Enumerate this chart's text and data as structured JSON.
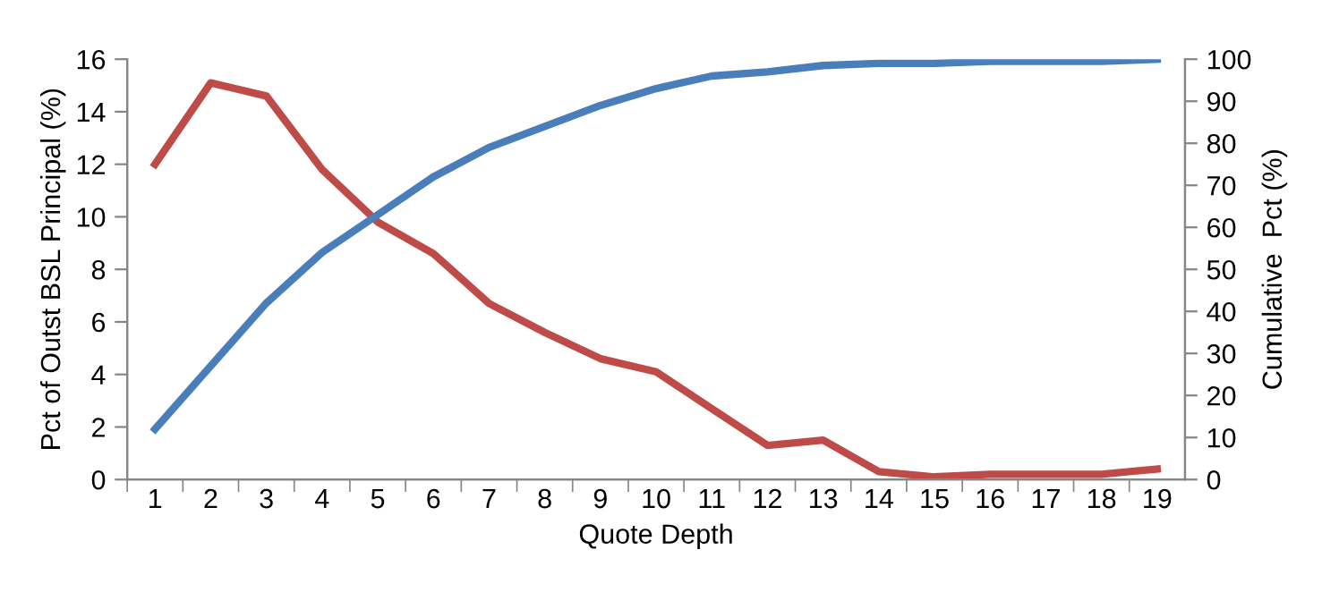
{
  "chart_data": {
    "type": "line",
    "xlabel": "Quote Depth",
    "ylabel": "Pct of Outst BSL Principal (%)",
    "y2label": "Cumulative  Pct (%)",
    "categories": [
      "1",
      "2",
      "3",
      "4",
      "5",
      "6",
      "7",
      "8",
      "9",
      "10",
      "11",
      "12",
      "13",
      "14",
      "15",
      "16",
      "17",
      "18",
      "19"
    ],
    "ylim": [
      0,
      16
    ],
    "yticks": [
      0,
      2,
      4,
      6,
      8,
      10,
      12,
      14,
      16
    ],
    "y2lim": [
      0,
      100
    ],
    "y2ticks": [
      0,
      10,
      20,
      30,
      40,
      50,
      60,
      70,
      80,
      90,
      100
    ],
    "grid": false,
    "legend": false,
    "marker": "none",
    "series": [
      {
        "color": "#be4b48",
        "values": [
          12.0,
          15.1,
          14.6,
          11.8,
          9.8,
          8.6,
          6.7,
          5.6,
          4.6,
          4.1,
          2.7,
          1.3,
          1.5,
          0.3,
          0.1,
          0.2,
          0.2,
          0.2,
          0.4
        ]
      },
      {
        "color": "#4a7ebb",
        "axis": "y2",
        "values": [
          12,
          27,
          42,
          54,
          63,
          72,
          79,
          84,
          89,
          93,
          96,
          97,
          98.5,
          99,
          99,
          99.5,
          99.5,
          99.5,
          100
        ]
      }
    ]
  }
}
